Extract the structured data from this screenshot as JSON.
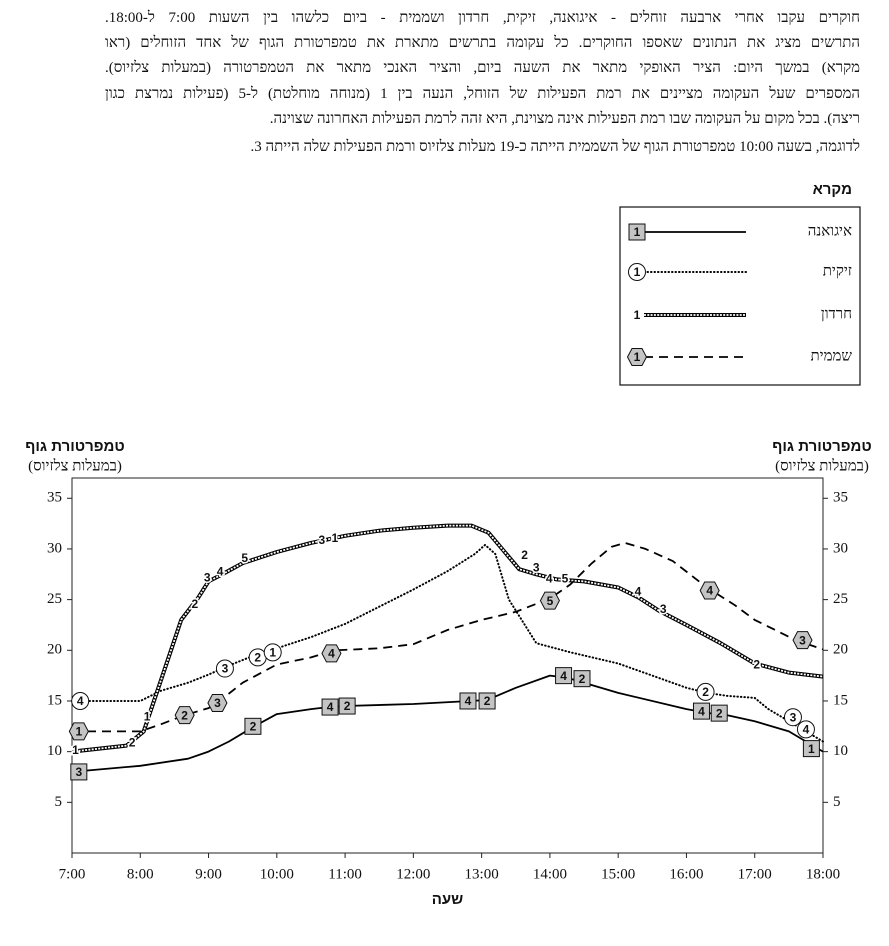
{
  "intro": {
    "lines": [
      "חוקרים עקבו אחרי ארבעה זוחלים - איגואנה, זיקית, חרדון ושממית - ביום כלשהו בין השעות 7:00 ל-18:00.",
      "התרשים מציג את הנתונים שאספו החוקרים.  כל עקומה בתרשים מתארת את טמפרטורת הגוף של אחד הזוחלים (ראו",
      "מקרא) במשך היום: הציר האופקי מתאר את השעה ביום, והציר האנכי מתאר את הטמפרטורה (במעלות צלזיוס).",
      "המספרים שעל העקומה מציינים את רמת הפעילות של הזוחל, הנעה בין 1 (מנוחה מוחלטת) ל-5 (פעילות נמרצת כגון",
      "ריצה).  בכל מקום על העקומה שבו רמת הפעילות אינה מצוינת, היא זהה לרמת הפעילות האחרונה שצוינה."
    ],
    "example": "לדוגמה, בשעה 10:00 טמפרטורת הגוף של השממית הייתה כ-19 מעלות צלזיוס ורמת הפעילות שלה הייתה 3."
  },
  "chart_data": {
    "type": "line",
    "xlabel": "שעה",
    "ylabel": [
      "טמפרטורת גוף",
      "(במעלות צלזיוס)"
    ],
    "y2label": [
      "טמפרטורת גוף",
      "(במעלות צלזיוס)"
    ],
    "xlim": [
      7,
      18
    ],
    "xticks": [
      {
        "value": 7,
        "label": "7:00"
      },
      {
        "value": 8,
        "label": "8:00"
      },
      {
        "value": 9,
        "label": "9:00"
      },
      {
        "value": 10,
        "label": "10:00"
      },
      {
        "value": 11,
        "label": "11:00"
      },
      {
        "value": 12,
        "label": "12:00"
      },
      {
        "value": 13,
        "label": "13:00"
      },
      {
        "value": 14,
        "label": "14:00"
      },
      {
        "value": 15,
        "label": "15:00"
      },
      {
        "value": 16,
        "label": "16:00"
      },
      {
        "value": 17,
        "label": "17:00"
      },
      {
        "value": 18,
        "label": "18:00"
      }
    ],
    "ylim": [
      0,
      37
    ],
    "yticks": [
      5,
      10,
      15,
      20,
      25,
      30,
      35
    ],
    "y2lim": [
      0,
      37
    ],
    "y2ticks": [
      5,
      10,
      15,
      20,
      25,
      30,
      35
    ],
    "legend": {
      "title": "מקרא",
      "sample_level": 1,
      "position": "top-right"
    },
    "series": [
      {
        "name": "איגואנה",
        "color": "#000000",
        "line_style": "solid",
        "marker": "square",
        "x": [
          7,
          8,
          8.7,
          9,
          9.3,
          9.67,
          10,
          10.5,
          10.75,
          11,
          12,
          12.83,
          13.08,
          13.5,
          14,
          14.25,
          15,
          16,
          16.33,
          16.6,
          17,
          17.5,
          18
        ],
        "values": [
          8,
          8.6,
          9.3,
          10,
          11,
          12.5,
          13.7,
          14.2,
          14.4,
          14.5,
          14.7,
          15,
          15.1,
          16.3,
          17.5,
          17.3,
          15.8,
          14.2,
          13.8,
          13.6,
          13,
          12,
          10
        ],
        "activity": [
          {
            "x": 7.1,
            "y": 8,
            "level": 3
          },
          {
            "x": 9.65,
            "y": 12.5,
            "level": 2
          },
          {
            "x": 10.78,
            "y": 14.4,
            "level": 4
          },
          {
            "x": 11.03,
            "y": 14.5,
            "level": 2
          },
          {
            "x": 12.8,
            "y": 15,
            "level": 4
          },
          {
            "x": 13.08,
            "y": 15,
            "level": 2
          },
          {
            "x": 14.2,
            "y": 17.5,
            "level": 4
          },
          {
            "x": 14.47,
            "y": 17.2,
            "level": 2
          },
          {
            "x": 16.22,
            "y": 14,
            "level": 4
          },
          {
            "x": 16.48,
            "y": 13.8,
            "level": 2
          },
          {
            "x": 17.83,
            "y": 10.3,
            "level": 1
          }
        ]
      },
      {
        "name": "זיקית",
        "color": "#000000",
        "line_style": "dotted",
        "marker": "circle",
        "x": [
          7,
          8,
          8.3,
          8.7,
          9,
          9.3,
          9.67,
          10,
          10.5,
          11,
          11.5,
          12,
          12.5,
          12.9,
          13.05,
          13.2,
          13.4,
          13.8,
          14.3,
          15,
          15.5,
          16,
          16.3,
          16.6,
          17,
          17.2,
          17.5,
          17.7,
          18
        ],
        "values": [
          15,
          15,
          16,
          16.8,
          17.6,
          18.5,
          19.5,
          20.2,
          21.3,
          22.6,
          24.3,
          26,
          27.8,
          29.5,
          30.4,
          29.5,
          25,
          20.7,
          19.8,
          18.7,
          17.5,
          16.3,
          15.8,
          15.5,
          15.3,
          14.2,
          13,
          12.2,
          11
        ],
        "activity": [
          {
            "x": 7.12,
            "y": 15,
            "level": 4
          },
          {
            "x": 9.24,
            "y": 18.2,
            "level": 3
          },
          {
            "x": 9.72,
            "y": 19.3,
            "level": 2
          },
          {
            "x": 9.94,
            "y": 19.8,
            "level": 1
          },
          {
            "x": 16.28,
            "y": 15.9,
            "level": 2
          },
          {
            "x": 17.56,
            "y": 13.4,
            "level": 3
          },
          {
            "x": 17.75,
            "y": 12.2,
            "level": 4
          }
        ]
      },
      {
        "name": "חרדון",
        "color": "#000000",
        "line_style": "chain",
        "marker": "none",
        "x": [
          7,
          7.8,
          8.05,
          8.3,
          8.6,
          8.85,
          9,
          9.2,
          9.5,
          10,
          10.5,
          11,
          11.5,
          12,
          12.5,
          12.85,
          13.1,
          13.3,
          13.55,
          13.8,
          14.1,
          14.5,
          15,
          15.3,
          15.6,
          16,
          16.5,
          17,
          17.5,
          18
        ],
        "values": [
          10,
          10.6,
          12,
          17,
          23,
          25.2,
          26.8,
          27.5,
          28.6,
          29.7,
          30.6,
          31.3,
          31.8,
          32.1,
          32.3,
          32.3,
          31.6,
          30,
          28,
          27.5,
          27,
          26.8,
          26.2,
          25.2,
          23.9,
          22.5,
          20.7,
          18.7,
          17.8,
          17.4
        ],
        "activity": [
          {
            "x": 7.05,
            "y": 10.2,
            "level": 1
          },
          {
            "x": 7.88,
            "y": 10.9,
            "level": 2
          },
          {
            "x": 8.1,
            "y": 13.5,
            "level": 1
          },
          {
            "x": 8.8,
            "y": 24.6,
            "level": 2
          },
          {
            "x": 8.98,
            "y": 27.2,
            "level": 3
          },
          {
            "x": 9.17,
            "y": 27.8,
            "level": 4
          },
          {
            "x": 9.53,
            "y": 29.1,
            "level": 5
          },
          {
            "x": 10.66,
            "y": 30.9,
            "level": 3
          },
          {
            "x": 10.85,
            "y": 31.1,
            "level": 1
          },
          {
            "x": 13.63,
            "y": 29.4,
            "level": 2
          },
          {
            "x": 13.8,
            "y": 28.2,
            "level": 3
          },
          {
            "x": 13.99,
            "y": 27.1,
            "level": 4
          },
          {
            "x": 14.22,
            "y": 27.1,
            "level": 5
          },
          {
            "x": 15.29,
            "y": 25.8,
            "level": 4
          },
          {
            "x": 15.66,
            "y": 24.1,
            "level": 3
          },
          {
            "x": 17.03,
            "y": 18.6,
            "level": 2
          }
        ]
      },
      {
        "name": "שממית",
        "color": "#000000",
        "line_style": "dashed",
        "marker": "hexagon",
        "x": [
          7,
          8,
          8.3,
          8.65,
          9,
          9.2,
          9.5,
          10,
          10.5,
          10.85,
          11.5,
          12,
          12.5,
          13,
          13.5,
          14,
          14.3,
          14.6,
          14.9,
          15.1,
          15.4,
          15.8,
          16.3,
          16.7,
          17,
          17.3,
          17.6,
          18
        ],
        "values": [
          12,
          12,
          12.7,
          13.6,
          14.3,
          15.2,
          16.8,
          18.6,
          19.3,
          20,
          20.2,
          20.6,
          22,
          23,
          23.8,
          25.1,
          26.5,
          28.5,
          30.2,
          30.6,
          30,
          28.8,
          26.2,
          24.5,
          23,
          22,
          21,
          20.1
        ],
        "activity": [
          {
            "x": 7.1,
            "y": 12,
            "level": 1
          },
          {
            "x": 8.65,
            "y": 13.6,
            "level": 2
          },
          {
            "x": 9.13,
            "y": 14.8,
            "level": 3
          },
          {
            "x": 10.8,
            "y": 19.7,
            "level": 4
          },
          {
            "x": 14,
            "y": 24.9,
            "level": 5
          },
          {
            "x": 16.34,
            "y": 25.9,
            "level": 4
          },
          {
            "x": 17.7,
            "y": 21,
            "level": 3
          }
        ]
      }
    ]
  }
}
